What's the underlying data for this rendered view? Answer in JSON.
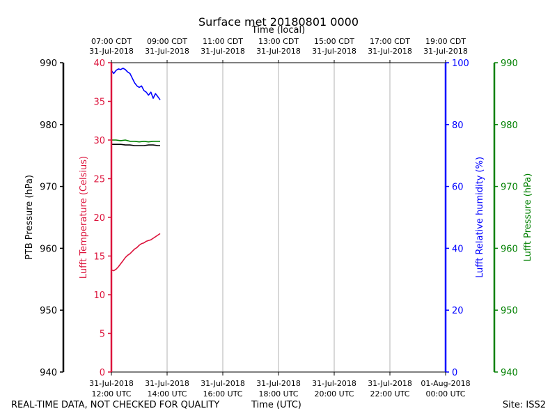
{
  "footer": {
    "quality_note": "REAL-TIME DATA, NOT CHECKED FOR QUALITY",
    "xlabel_utc": "Time (UTC)",
    "site": "Site: ISS2"
  },
  "colors": {
    "temperature": "#dc143c",
    "humidity": "#0000ff",
    "lufft_pressure": "#008000",
    "ptb_pressure": "#000000",
    "grid": "#b0b0b0"
  },
  "chart_data": {
    "type": "line",
    "title": "Surface met 20180801 0000",
    "x_top_label": "Time (local)",
    "x_bottom_label": "Time (UTC)",
    "xlim": [
      "2018-07-31T12:00",
      "2018-08-01T00:00"
    ],
    "x_ticks_bottom": [
      {
        "t": "2018-07-31T12:00",
        "l1": "31-Jul-2018",
        "l2": "12:00 UTC"
      },
      {
        "t": "2018-07-31T14:00",
        "l1": "31-Jul-2018",
        "l2": "14:00 UTC"
      },
      {
        "t": "2018-07-31T16:00",
        "l1": "31-Jul-2018",
        "l2": "16:00 UTC"
      },
      {
        "t": "2018-07-31T18:00",
        "l1": "31-Jul-2018",
        "l2": "18:00 UTC"
      },
      {
        "t": "2018-07-31T20:00",
        "l1": "31-Jul-2018",
        "l2": "20:00 UTC"
      },
      {
        "t": "2018-07-31T22:00",
        "l1": "31-Jul-2018",
        "l2": "22:00 UTC"
      },
      {
        "t": "2018-08-01T00:00",
        "l1": "01-Aug-2018",
        "l2": "00:00 UTC"
      }
    ],
    "x_ticks_top": [
      {
        "t": "2018-07-31T12:00",
        "l1": "07:00 CDT",
        "l2": "31-Jul-2018"
      },
      {
        "t": "2018-07-31T14:00",
        "l1": "09:00 CDT",
        "l2": "31-Jul-2018"
      },
      {
        "t": "2018-07-31T16:00",
        "l1": "11:00 CDT",
        "l2": "31-Jul-2018"
      },
      {
        "t": "2018-07-31T18:00",
        "l1": "13:00 CDT",
        "l2": "31-Jul-2018"
      },
      {
        "t": "2018-07-31T20:00",
        "l1": "15:00 CDT",
        "l2": "31-Jul-2018"
      },
      {
        "t": "2018-07-31T22:00",
        "l1": "17:00 CDT",
        "l2": "31-Jul-2018"
      },
      {
        "t": "2018-08-01T00:00",
        "l1": "19:00 CDT",
        "l2": "31-Jul-2018"
      }
    ],
    "grid": true,
    "axes": {
      "ptb_pressure": {
        "label": "PTB Pressure (hPa)",
        "lim": [
          940,
          990
        ],
        "ticks": [
          940,
          950,
          960,
          970,
          980,
          990
        ],
        "color": "#000000"
      },
      "temperature": {
        "label": "Lufft Temperature (Celsius)",
        "lim": [
          0,
          40
        ],
        "ticks": [
          0,
          5,
          10,
          15,
          20,
          25,
          30,
          35,
          40
        ],
        "color": "#dc143c"
      },
      "humidity": {
        "label": "Lufft Relative humidity (%)",
        "lim": [
          0,
          100
        ],
        "ticks": [
          0,
          20,
          40,
          60,
          80,
          100
        ],
        "color": "#0000ff"
      },
      "lufft_pressure": {
        "label": "Lufft Pressure (hPa)",
        "lim": [
          940,
          990
        ],
        "ticks": [
          940,
          950,
          960,
          970,
          980,
          990
        ],
        "color": "#008000"
      }
    },
    "series": [
      {
        "axis": "temperature",
        "color": "#dc143c",
        "x": [
          "2018-07-31T12:00",
          "2018-07-31T12:05",
          "2018-07-31T12:10",
          "2018-07-31T12:15",
          "2018-07-31T12:20",
          "2018-07-31T12:25",
          "2018-07-31T12:30",
          "2018-07-31T12:35",
          "2018-07-31T12:40",
          "2018-07-31T12:45",
          "2018-07-31T12:50",
          "2018-07-31T12:55",
          "2018-07-31T13:00",
          "2018-07-31T13:05",
          "2018-07-31T13:10",
          "2018-07-31T13:15",
          "2018-07-31T13:20",
          "2018-07-31T13:25",
          "2018-07-31T13:30",
          "2018-07-31T13:35",
          "2018-07-31T13:40",
          "2018-07-31T13:45"
        ],
        "y": [
          13.2,
          13.1,
          13.3,
          13.6,
          14.0,
          14.4,
          14.8,
          15.1,
          15.3,
          15.6,
          15.9,
          16.1,
          16.4,
          16.6,
          16.7,
          16.9,
          17.0,
          17.1,
          17.3,
          17.5,
          17.7,
          17.9
        ]
      },
      {
        "axis": "humidity",
        "color": "#0000ff",
        "x": [
          "2018-07-31T12:00",
          "2018-07-31T12:05",
          "2018-07-31T12:10",
          "2018-07-31T12:15",
          "2018-07-31T12:20",
          "2018-07-31T12:25",
          "2018-07-31T12:30",
          "2018-07-31T12:35",
          "2018-07-31T12:40",
          "2018-07-31T12:45",
          "2018-07-31T12:50",
          "2018-07-31T12:55",
          "2018-07-31T13:00",
          "2018-07-31T13:05",
          "2018-07-31T13:10",
          "2018-07-31T13:15",
          "2018-07-31T13:20",
          "2018-07-31T13:25",
          "2018-07-31T13:30",
          "2018-07-31T13:35",
          "2018-07-31T13:40",
          "2018-07-31T13:45"
        ],
        "y": [
          97.5,
          96.5,
          97.5,
          98.0,
          97.8,
          98.2,
          97.8,
          97.0,
          96.5,
          95.0,
          93.5,
          92.5,
          92.0,
          92.5,
          91.0,
          90.5,
          89.5,
          90.5,
          88.5,
          90.0,
          89.0,
          88.0
        ]
      },
      {
        "axis": "lufft_pressure",
        "color": "#008000",
        "x": [
          "2018-07-31T12:00",
          "2018-07-31T12:10",
          "2018-07-31T12:20",
          "2018-07-31T12:30",
          "2018-07-31T12:40",
          "2018-07-31T12:50",
          "2018-07-31T13:00",
          "2018-07-31T13:10",
          "2018-07-31T13:20",
          "2018-07-31T13:30",
          "2018-07-31T13:40",
          "2018-07-31T13:45"
        ],
        "y": [
          977.5,
          977.5,
          977.4,
          977.5,
          977.3,
          977.3,
          977.2,
          977.3,
          977.2,
          977.3,
          977.3,
          977.3
        ]
      },
      {
        "axis": "ptb_pressure",
        "color": "#000000",
        "x": [
          "2018-07-31T12:00",
          "2018-07-31T12:10",
          "2018-07-31T12:20",
          "2018-07-31T12:30",
          "2018-07-31T12:40",
          "2018-07-31T12:50",
          "2018-07-31T13:00",
          "2018-07-31T13:10",
          "2018-07-31T13:20",
          "2018-07-31T13:30",
          "2018-07-31T13:40",
          "2018-07-31T13:45"
        ],
        "y": [
          976.8,
          976.8,
          976.8,
          976.7,
          976.7,
          976.6,
          976.6,
          976.6,
          976.7,
          976.7,
          976.6,
          976.6
        ]
      }
    ]
  }
}
